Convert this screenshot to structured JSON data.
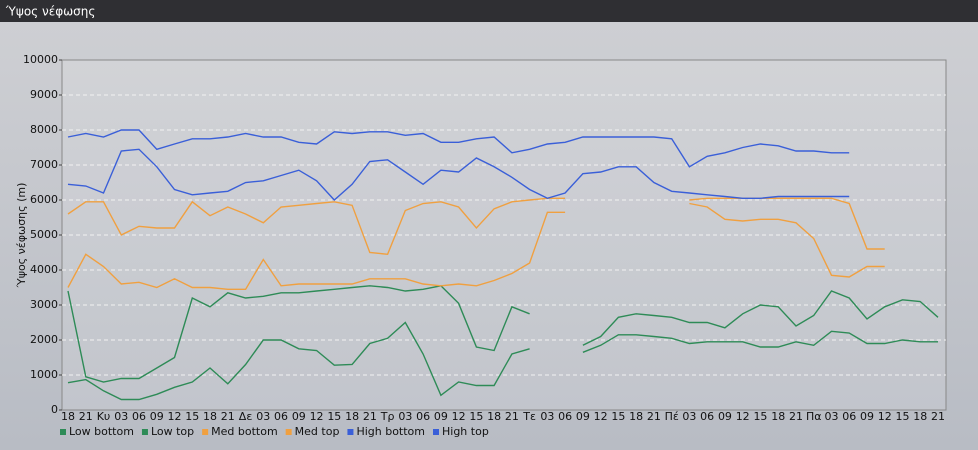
{
  "chart_data": {
    "type": "line",
    "title": "Ύψος νέφωσης",
    "ylabel": "Ύψος νέφωσης (m)",
    "categories": [
      "18",
      "21",
      "Κυ",
      "03",
      "06",
      "09",
      "12",
      "15",
      "18",
      "21",
      "Δε",
      "03",
      "06",
      "09",
      "12",
      "15",
      "18",
      "21",
      "Τρ",
      "03",
      "06",
      "09",
      "12",
      "15",
      "18",
      "21",
      "Τε",
      "03",
      "06",
      "09",
      "12",
      "15",
      "18",
      "21",
      "Πέ",
      "03",
      "06",
      "09",
      "12",
      "15",
      "18",
      "21",
      "Πα",
      "03",
      "06",
      "09",
      "12",
      "15",
      "18",
      "21"
    ],
    "ylim": [
      0,
      10000
    ],
    "yticks": [
      0,
      1000,
      2000,
      3000,
      4000,
      5000,
      6000,
      7000,
      8000,
      9000,
      10000
    ],
    "grid": true,
    "series": [
      {
        "name": "Low bottom",
        "color": "#2e8b57",
        "values": [
          780,
          870,
          550,
          300,
          300,
          450,
          650,
          800,
          1200,
          750,
          1300,
          2000,
          2000,
          1750,
          1700,
          1280,
          1300,
          1900,
          2050,
          2500,
          1600,
          420,
          800,
          700,
          700,
          1600,
          1750,
          null,
          null,
          1650,
          1850,
          2150,
          2150,
          2100,
          2050,
          1900,
          1950,
          1950,
          1950,
          1800,
          1800,
          1950,
          1850,
          2250,
          2200,
          1900,
          1900,
          2000,
          1950,
          1950
        ]
      },
      {
        "name": "Low top",
        "color": "#2e8b57",
        "values": [
          3400,
          950,
          800,
          900,
          900,
          1200,
          1500,
          3200,
          2950,
          3350,
          3200,
          3250,
          3350,
          3350,
          3400,
          3450,
          3500,
          3550,
          3500,
          3400,
          3450,
          3550,
          3050,
          1800,
          1700,
          2950,
          2750,
          null,
          null,
          1850,
          2100,
          2650,
          2750,
          2700,
          2650,
          2500,
          2500,
          2350,
          2750,
          3000,
          2950,
          2400,
          2700,
          3400,
          3200,
          2600,
          2950,
          3150,
          3100,
          2650
        ]
      },
      {
        "name": "Med bottom",
        "color": "#f0a040",
        "values": [
          3500,
          4450,
          4100,
          3600,
          3650,
          3500,
          3750,
          3500,
          3500,
          3450,
          3450,
          4300,
          3550,
          3600,
          3600,
          3600,
          3600,
          3750,
          3750,
          3750,
          3600,
          3550,
          3600,
          3550,
          3700,
          3900,
          4200,
          5650,
          5650,
          null,
          null,
          null,
          null,
          null,
          null,
          5900,
          5800,
          5450,
          5400,
          5450,
          5450,
          5350,
          4900,
          3850,
          3800,
          4100,
          4100,
          null,
          null,
          null
        ]
      },
      {
        "name": "Med top",
        "color": "#f0a040",
        "values": [
          5600,
          5950,
          5950,
          5000,
          5250,
          5200,
          5200,
          5950,
          5550,
          5800,
          5600,
          5350,
          5800,
          5850,
          5900,
          5950,
          5850,
          4500,
          4450,
          5700,
          5900,
          5950,
          5800,
          5200,
          5750,
          5950,
          6000,
          6050,
          6050,
          null,
          null,
          null,
          null,
          null,
          null,
          6000,
          6050,
          6050,
          6050,
          6050,
          6050,
          6050,
          6050,
          6050,
          5900,
          4600,
          4600,
          null,
          null,
          null
        ]
      },
      {
        "name": "High bottom",
        "color": "#3a5fd8",
        "values": [
          6450,
          6400,
          6200,
          7400,
          7450,
          6950,
          6300,
          6150,
          6200,
          6250,
          6500,
          6550,
          6700,
          6850,
          6550,
          6000,
          6450,
          7100,
          7150,
          6800,
          6450,
          6850,
          6800,
          7200,
          6950,
          6650,
          6300,
          6050,
          6200,
          6750,
          6800,
          6950,
          6950,
          6500,
          6250,
          6200,
          6150,
          6100,
          6050,
          6050,
          6100,
          6100,
          6100,
          6100,
          6100,
          null,
          null,
          null,
          null,
          null
        ]
      },
      {
        "name": "High top",
        "color": "#3a5fd8",
        "values": [
          7800,
          7900,
          7800,
          8000,
          8000,
          7450,
          7600,
          7750,
          7750,
          7800,
          7900,
          7800,
          7800,
          7650,
          7600,
          7950,
          7900,
          7950,
          7950,
          7850,
          7900,
          7650,
          7650,
          7750,
          7800,
          7350,
          7450,
          7600,
          7650,
          7800,
          7800,
          7800,
          7800,
          7800,
          7750,
          6950,
          7250,
          7350,
          7500,
          7600,
          7550,
          7400,
          7400,
          7350,
          7350,
          null,
          null,
          null,
          null,
          null
        ]
      }
    ]
  }
}
